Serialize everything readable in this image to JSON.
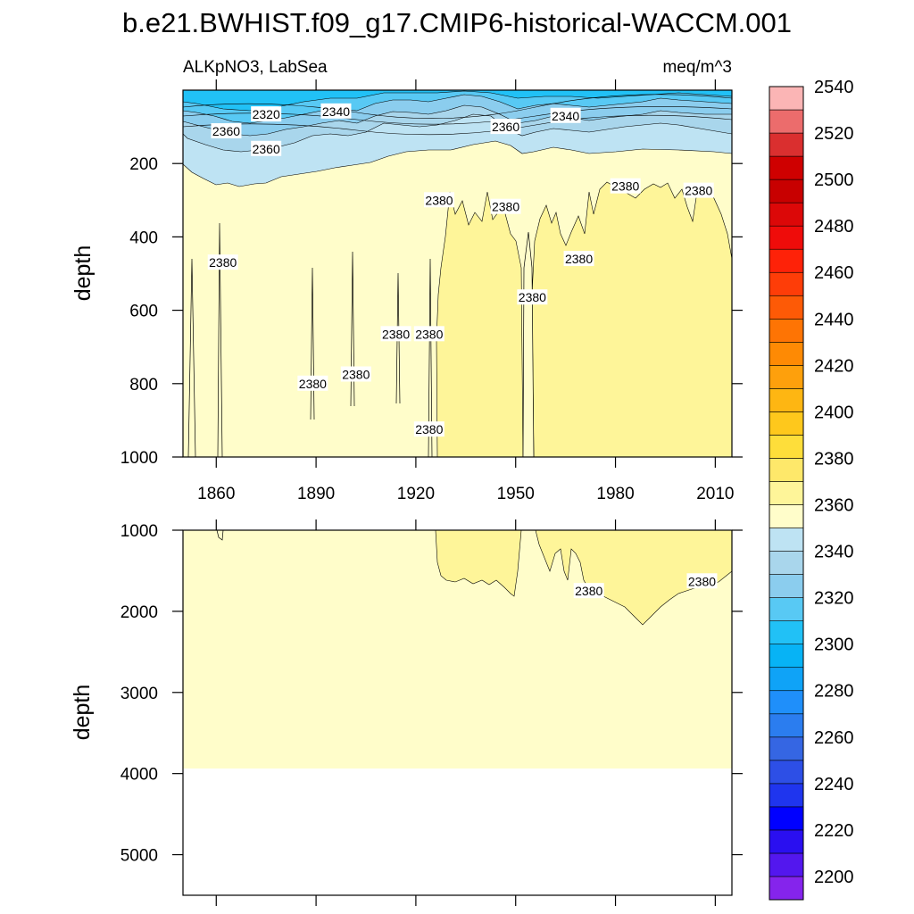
{
  "title": "b.e21.BWHIST.f09_g17.CMIP6-historical-WACCM.001",
  "chart_data": {
    "type": "heatmap",
    "title": "b.e21.BWHIST.f09_g17.CMIP6-historical-WACCM.001",
    "left_subtitle": "ALKpNO3, LabSea",
    "right_subtitle": "meq/m^3",
    "ylabel": "depth",
    "x_range": [
      1850,
      2015
    ],
    "x_ticks": [
      1860,
      1890,
      1920,
      1950,
      1980,
      2010
    ],
    "panels": [
      {
        "name": "upper",
        "ylim": [
          0,
          1000
        ],
        "y_ticks": [
          200,
          400,
          600,
          800,
          1000
        ],
        "contour_labels": [
          {
            "text": "2320",
            "x": 1875,
            "y": 66
          },
          {
            "text": "2340",
            "x": 1896,
            "y": 58
          },
          {
            "text": "2360",
            "x": 1863,
            "y": 112
          },
          {
            "text": "2360",
            "x": 1875,
            "y": 160
          },
          {
            "text": "2360",
            "x": 1947,
            "y": 100
          },
          {
            "text": "2340",
            "x": 1965,
            "y": 70
          },
          {
            "text": "2380",
            "x": 1927,
            "y": 300
          },
          {
            "text": "2380",
            "x": 1947,
            "y": 318
          },
          {
            "text": "2380",
            "x": 1983,
            "y": 262
          },
          {
            "text": "2380",
            "x": 2005,
            "y": 274
          },
          {
            "text": "2380",
            "x": 1862,
            "y": 470
          },
          {
            "text": "2380",
            "x": 1969,
            "y": 460
          },
          {
            "text": "2380",
            "x": 1955,
            "y": 565
          },
          {
            "text": "2380",
            "x": 1914,
            "y": 665
          },
          {
            "text": "2380",
            "x": 1924,
            "y": 665
          },
          {
            "text": "2380",
            "x": 1889,
            "y": 800
          },
          {
            "text": "2380",
            "x": 1902,
            "y": 775
          },
          {
            "text": "2380",
            "x": 1924,
            "y": 925
          }
        ]
      },
      {
        "name": "lower",
        "ylim": [
          1000,
          5500
        ],
        "y_ticks": [
          1000,
          2000,
          3000,
          4000,
          5000
        ],
        "max_data_depth": 3870,
        "contour_labels": [
          {
            "text": "2380",
            "x": 1972,
            "y": 1750
          },
          {
            "text": "2380",
            "x": 2006,
            "y": 1630
          }
        ]
      }
    ],
    "colorbar": {
      "levels": [
        2200,
        2220,
        2240,
        2260,
        2280,
        2300,
        2320,
        2340,
        2360,
        2380,
        2400,
        2420,
        2440,
        2460,
        2480,
        2500,
        2520,
        2540
      ],
      "tick_labels": [
        "2200",
        "2220",
        "2240",
        "2260",
        "2280",
        "2300",
        "2320",
        "2340",
        "2360",
        "2380",
        "2400",
        "2420",
        "2440",
        "2460",
        "2480",
        "2500",
        "2520",
        "2540"
      ],
      "colors": [
        "#8524ec",
        "#5317ee",
        "#2a0ff0",
        "#0000ff",
        "#1f35ee",
        "#2d4fe6",
        "#3566e3",
        "#2b7def",
        "#1f8ffa",
        "#0fa3f7",
        "#07b3f5",
        "#21c1f6",
        "#58c9f4",
        "#8bcdee",
        "#a9d6ec",
        "#bee3f3",
        "#fffdca",
        "#fef599",
        "#fee86a",
        "#fede3a",
        "#fec81c",
        "#feb612",
        "#fea00c",
        "#fe8a04",
        "#fe7404",
        "#fd5a06",
        "#fe3d08",
        "#fe2208",
        "#ef0c0a",
        "#dc0808",
        "#c80000",
        "#cf0000",
        "#da2f2f",
        "#ec6c6c",
        "#fbb5b5"
      ]
    }
  }
}
